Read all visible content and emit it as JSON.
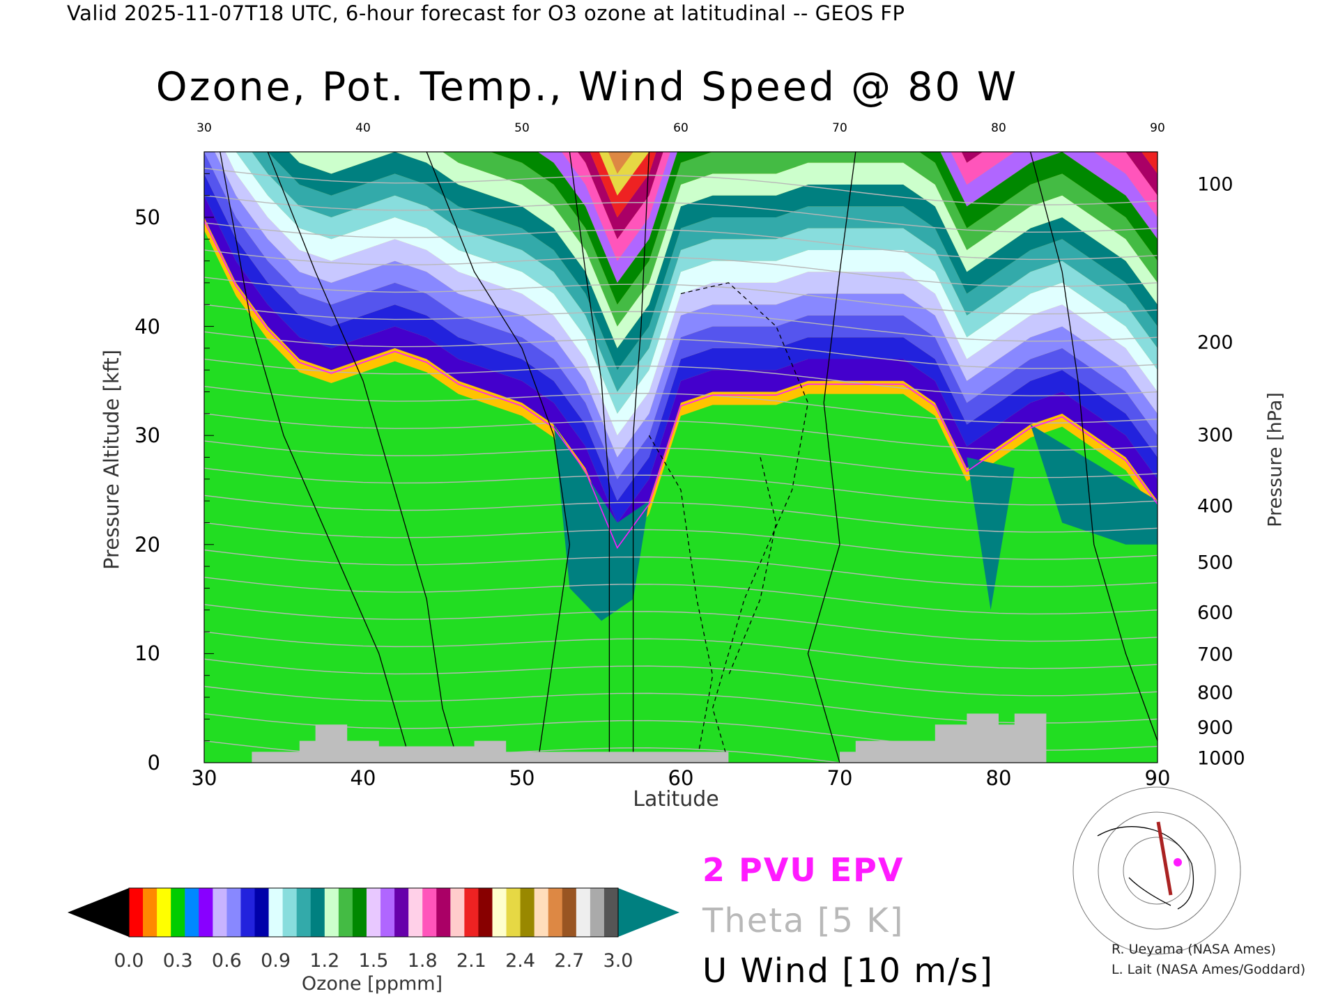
{
  "header": "Valid 2025-11-07T18 UTC, 6-hour forecast for O3 ozone at latitudinal -- GEOS FP",
  "chart_data": {
    "type": "heatmap",
    "title": "Ozone, Pot. Temp., Wind Speed @ 80 W",
    "xlabel": "Latitude",
    "ylabel_left": "Pressure Altitude [kft]",
    "ylabel_right": "Pressure [hPa]",
    "xlim": [
      30,
      90
    ],
    "ylim": [
      0,
      56
    ],
    "x_ticks_bottom": [
      "30",
      "40",
      "50",
      "60",
      "70",
      "80",
      "90"
    ],
    "x_ticks_top": [
      "30",
      "40",
      "50",
      "60",
      "70",
      "80",
      "90"
    ],
    "y_ticks_left": [
      "0",
      "10",
      "20",
      "30",
      "40",
      "50"
    ],
    "y_ticks_right": [
      {
        "label": "100",
        "kft": 53.0
      },
      {
        "label": "200",
        "kft": 38.5
      },
      {
        "label": "300",
        "kft": 30.0
      },
      {
        "label": "400",
        "kft": 23.5
      },
      {
        "label": "500",
        "kft": 18.3
      },
      {
        "label": "600",
        "kft": 13.7
      },
      {
        "label": "700",
        "kft": 9.9
      },
      {
        "label": "800",
        "kft": 6.4
      },
      {
        "label": "900",
        "kft": 3.2
      },
      {
        "label": "1000",
        "kft": 0.4
      }
    ],
    "tropopause_kft": [
      [
        30,
        50
      ],
      [
        32,
        44
      ],
      [
        34,
        40
      ],
      [
        36,
        37
      ],
      [
        38,
        36
      ],
      [
        40,
        37
      ],
      [
        42,
        38
      ],
      [
        44,
        37
      ],
      [
        46,
        35
      ],
      [
        48,
        34
      ],
      [
        50,
        33
      ],
      [
        52,
        31
      ],
      [
        54,
        27
      ],
      [
        56,
        20
      ],
      [
        58,
        24
      ],
      [
        60,
        33
      ],
      [
        62,
        34
      ],
      [
        64,
        34
      ],
      [
        66,
        34
      ],
      [
        68,
        35
      ],
      [
        70,
        35
      ],
      [
        72,
        35
      ],
      [
        74,
        35
      ],
      [
        76,
        33
      ],
      [
        78,
        27
      ],
      [
        80,
        29
      ],
      [
        82,
        31
      ],
      [
        84,
        32
      ],
      [
        86,
        30
      ],
      [
        88,
        28
      ],
      [
        90,
        24
      ]
    ],
    "surface_terrain_kft": [
      [
        33,
        0
      ],
      [
        33,
        1
      ],
      [
        36,
        1
      ],
      [
        36,
        2
      ],
      [
        37,
        2
      ],
      [
        37,
        3.5
      ],
      [
        39,
        3.5
      ],
      [
        39,
        2
      ],
      [
        41,
        2
      ],
      [
        41,
        1.5
      ],
      [
        47,
        1.5
      ],
      [
        47,
        2
      ],
      [
        49,
        2
      ],
      [
        49,
        1
      ],
      [
        63,
        1
      ],
      [
        63,
        0
      ],
      [
        70,
        0
      ],
      [
        70,
        1
      ],
      [
        71,
        1
      ],
      [
        71,
        2
      ],
      [
        76,
        2
      ],
      [
        76,
        3.5
      ],
      [
        78,
        3.5
      ],
      [
        78,
        4.5
      ],
      [
        80,
        4.5
      ],
      [
        80,
        3.5
      ],
      [
        81,
        3.5
      ],
      [
        81,
        4.5
      ],
      [
        83,
        4.5
      ],
      [
        83,
        0
      ]
    ],
    "colorbar": {
      "label": "Ozone [ppmm]",
      "ticks": [
        "0.0",
        "0.3",
        "0.6",
        "0.9",
        "1.2",
        "1.5",
        "1.8",
        "2.1",
        "2.4",
        "2.7",
        "3.0"
      ],
      "range": [
        0,
        3.0
      ],
      "segments": [
        "#ff0000",
        "#ff8800",
        "#ffff00",
        "#00cc00",
        "#0088ff",
        "#8800ff",
        "#c8b4ff",
        "#8888ff",
        "#2222dd",
        "#0000aa",
        "#ddffff",
        "#88dddd",
        "#33aaaa",
        "#008080",
        "#ccffcc",
        "#44bb44",
        "#008800",
        "#e8c8ff",
        "#b066ff",
        "#6600aa",
        "#ffd0e8",
        "#ff55bb",
        "#aa0066",
        "#ffcccc",
        "#ee2222",
        "#880000",
        "#ffffcc",
        "#e6d844",
        "#998800",
        "#ffddbb",
        "#dd8844",
        "#995522",
        "#eeeeee",
        "#aaaaaa",
        "#555555"
      ],
      "over_color": "#008080",
      "under_color": "#000000"
    },
    "legend": {
      "pvu": "2 PVU EPV",
      "theta": "Theta [5 K]",
      "uwind": "U Wind [10 m/s]"
    },
    "colors": {
      "pvu_line": "#ff1aff",
      "theta_line": "#b8b8b8",
      "wind_line": "#000000",
      "terrain": "#bebebe"
    }
  },
  "credits": [
    "R. Ueyama (NASA Ames)",
    "L. Lait (NASA Ames/Goddard)"
  ]
}
